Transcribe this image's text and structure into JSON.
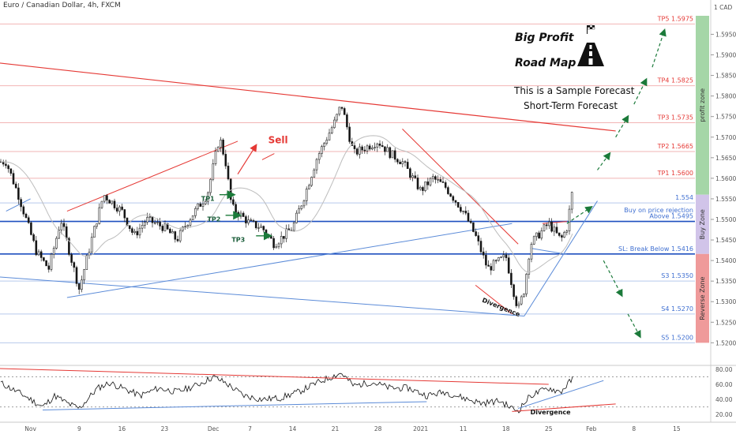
{
  "header": {
    "title": "Euro / Canadian Dollar, 4h, FXCM"
  },
  "currency_badge": "1 CAD",
  "annotations": {
    "big_profit": "Big Profit",
    "road_map": "Road Map",
    "sample": "This is a Sample Forecast",
    "short_term": "Short-Term Forecast",
    "sell": "Sell",
    "tp1": "TP1",
    "tp2": "TP2",
    "tp3": "TP3",
    "divergence_price": "Divergence",
    "divergence_rsi": "Divergence"
  },
  "icons": {
    "road": "road-icon",
    "flag": "checkered-flag-icon"
  },
  "colors": {
    "up": "#26a69a",
    "down": "#ef5350",
    "candle": "#222222",
    "trend_red": "#e53935",
    "trend_blue": "#5b8bd8",
    "profit_zone": "#a5d6a7",
    "buy_zone": "#d1c4e9",
    "reverse_zone": "#ef9a9a",
    "arrow_green": "#1b7a3a",
    "tp_label": "#e53935",
    "s_label": "#3f6fd1"
  },
  "chart_data": {
    "type": "candlestick",
    "symbol": "EURCAD",
    "timeframe": "4h",
    "y_axis": {
      "ylim": [
        1.517,
        1.5995
      ],
      "ticks": [
        1.595,
        1.59,
        1.585,
        1.58,
        1.575,
        1.57,
        1.565,
        1.56,
        1.555,
        1.55,
        1.545,
        1.54,
        1.535,
        1.53,
        1.525,
        1.52
      ],
      "tick_labels": [
        "1.5950",
        "1.5900",
        "1.5850",
        "1.5800",
        "1.5750",
        "1.5700",
        "1.5650",
        "1.5600",
        "1.5550",
        "1.5500",
        "1.5450",
        "1.5400",
        "1.5350",
        "1.5300",
        "1.5250",
        "1.5200"
      ]
    },
    "x_axis": {
      "labels": [
        "Nov",
        "9",
        "16",
        "23",
        "Dec",
        "7",
        "14",
        "21",
        "28",
        "2021",
        "11",
        "18",
        "25",
        "Feb",
        "8",
        "15"
      ],
      "dates": [
        "2020-11-01",
        "2020-11-09",
        "2020-11-16",
        "2020-11-23",
        "2020-12-01",
        "2020-12-07",
        "2020-12-14",
        "2020-12-21",
        "2020-12-28",
        "2021-01-04",
        "2021-01-11",
        "2021-01-18",
        "2021-01-25",
        "2021-02-01",
        "2021-02-08",
        "2021-02-15"
      ]
    },
    "price_path": [
      [
        "2020-10-28",
        1.564
      ],
      [
        "2020-10-30",
        1.556
      ],
      [
        "2020-11-02",
        1.542
      ],
      [
        "2020-11-04",
        1.538
      ],
      [
        "2020-11-06",
        1.55
      ],
      [
        "2020-11-09",
        1.533
      ],
      [
        "2020-11-11",
        1.545
      ],
      [
        "2020-11-13",
        1.556
      ],
      [
        "2020-11-16",
        1.552
      ],
      [
        "2020-11-18",
        1.546
      ],
      [
        "2020-11-20",
        1.55
      ],
      [
        "2020-11-23",
        1.548
      ],
      [
        "2020-11-25",
        1.545
      ],
      [
        "2020-11-27",
        1.55
      ],
      [
        "2020-11-30",
        1.556
      ],
      [
        "2020-12-02",
        1.57
      ],
      [
        "2020-12-03",
        1.564
      ],
      [
        "2020-12-04",
        1.553
      ],
      [
        "2020-12-07",
        1.549
      ],
      [
        "2020-12-09",
        1.548
      ],
      [
        "2020-12-11",
        1.544
      ],
      [
        "2020-12-14",
        1.548
      ],
      [
        "2020-12-16",
        1.556
      ],
      [
        "2020-12-18",
        1.565
      ],
      [
        "2020-12-21",
        1.574
      ],
      [
        "2020-12-22",
        1.578
      ],
      [
        "2020-12-24",
        1.566
      ],
      [
        "2020-12-28",
        1.569
      ],
      [
        "2020-12-30",
        1.566
      ],
      [
        "2021-01-01",
        1.564
      ],
      [
        "2021-01-04",
        1.557
      ],
      [
        "2021-01-06",
        1.56
      ],
      [
        "2021-01-08",
        1.558
      ],
      [
        "2021-01-11",
        1.552
      ],
      [
        "2021-01-13",
        1.546
      ],
      [
        "2021-01-15",
        1.538
      ],
      [
        "2021-01-18",
        1.541
      ],
      [
        "2021-01-19",
        1.534
      ],
      [
        "2021-01-20",
        1.528
      ],
      [
        "2021-01-21",
        1.533
      ],
      [
        "2021-01-22",
        1.544
      ],
      [
        "2021-01-25",
        1.549
      ],
      [
        "2021-01-27",
        1.545
      ],
      [
        "2021-01-28",
        1.548
      ],
      [
        "2021-01-29",
        1.558
      ]
    ],
    "levels": [
      {
        "label": "TP5",
        "value": 1.5975,
        "text": "TP5 1.5975"
      },
      {
        "label": "TP4",
        "value": 1.5825,
        "text": "TP4 1.5825"
      },
      {
        "label": "TP3",
        "value": 1.5735,
        "text": "TP3 1.5735"
      },
      {
        "label": "TP2",
        "value": 1.5665,
        "text": "TP2 1.5665"
      },
      {
        "label": "TP1",
        "value": 1.56,
        "text": "TP1 1.5600"
      },
      {
        "label": "price",
        "value": 1.554,
        "text": "1.554"
      },
      {
        "label": "buy",
        "value": 1.551,
        "text": "Buy on price rejection"
      },
      {
        "label": "above",
        "value": 1.5495,
        "text": "Above 1.5495"
      },
      {
        "label": "SL",
        "value": 1.5416,
        "text": "SL: Break Below 1.5416"
      },
      {
        "label": "S3",
        "value": 1.535,
        "text": "S3 1.5350"
      },
      {
        "label": "S4",
        "value": 1.527,
        "text": "S4 1.5270"
      },
      {
        "label": "S5",
        "value": 1.52,
        "text": "S5 1.5200"
      }
    ],
    "zones": [
      {
        "name": "profit zone",
        "from": 1.5995,
        "to": 1.556
      },
      {
        "name": "Buy Zone",
        "from": 1.556,
        "to": 1.5416
      },
      {
        "name": "Reverse Zone",
        "from": 1.5416,
        "to": 1.52
      }
    ],
    "rsi": {
      "ylim": [
        15,
        82
      ],
      "ticks": [
        80.0,
        60.0,
        40.0,
        20.0
      ],
      "tick_labels": [
        "80.00",
        "60.00",
        "40.00",
        "20.00"
      ],
      "path": [
        [
          "2020-10-28",
          58
        ],
        [
          "2020-10-31",
          45
        ],
        [
          "2020-11-03",
          30
        ],
        [
          "2020-11-05",
          45
        ],
        [
          "2020-11-07",
          35
        ],
        [
          "2020-11-09",
          28
        ],
        [
          "2020-11-12",
          55
        ],
        [
          "2020-11-14",
          62
        ],
        [
          "2020-11-17",
          52
        ],
        [
          "2020-11-19",
          45
        ],
        [
          "2020-11-22",
          55
        ],
        [
          "2020-11-25",
          50
        ],
        [
          "2020-11-28",
          58
        ],
        [
          "2020-12-01",
          70
        ],
        [
          "2020-12-03",
          62
        ],
        [
          "2020-12-06",
          45
        ],
        [
          "2020-12-09",
          40
        ],
        [
          "2020-12-12",
          42
        ],
        [
          "2020-12-15",
          50
        ],
        [
          "2020-12-18",
          62
        ],
        [
          "2020-12-21",
          72
        ],
        [
          "2020-12-22",
          75
        ],
        [
          "2020-12-24",
          58
        ],
        [
          "2020-12-27",
          63
        ],
        [
          "2020-12-30",
          55
        ],
        [
          "2021-01-02",
          55
        ],
        [
          "2021-01-05",
          45
        ],
        [
          "2021-01-08",
          50
        ],
        [
          "2021-01-11",
          42
        ],
        [
          "2021-01-14",
          35
        ],
        [
          "2021-01-17",
          38
        ],
        [
          "2021-01-19",
          28
        ],
        [
          "2021-01-20",
          25
        ],
        [
          "2021-01-22",
          45
        ],
        [
          "2021-01-25",
          55
        ],
        [
          "2021-01-27",
          50
        ],
        [
          "2021-01-29",
          68
        ]
      ]
    }
  }
}
